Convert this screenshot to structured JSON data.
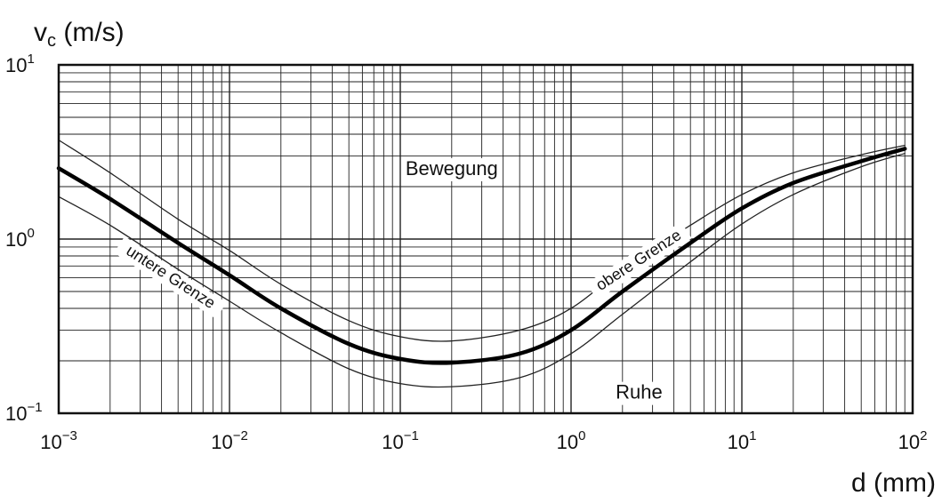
{
  "chart_data": {
    "type": "line",
    "ylabel": {
      "main": "v",
      "sub": "c",
      "unit": " (m/s)"
    },
    "xlabel": "d (mm)",
    "x_scale": "log",
    "y_scale": "log",
    "xlim": [
      0.001,
      100
    ],
    "ylim": [
      0.1,
      10
    ],
    "grid": true,
    "x_ticks": [
      {
        "base": "10",
        "exp": "−3",
        "value": 0.001
      },
      {
        "base": "10",
        "exp": "−2",
        "value": 0.01
      },
      {
        "base": "10",
        "exp": "−1",
        "value": 0.1
      },
      {
        "base": "10",
        "exp": "0",
        "value": 1
      },
      {
        "base": "10",
        "exp": "1",
        "value": 10
      },
      {
        "base": "10",
        "exp": "2",
        "value": 100
      }
    ],
    "y_ticks": [
      {
        "base": "10",
        "exp": "−1",
        "value": 0.1
      },
      {
        "base": "10",
        "exp": "0",
        "value": 1
      },
      {
        "base": "10",
        "exp": "1",
        "value": 10
      }
    ],
    "series": [
      {
        "id": "mean",
        "x": [
          0.001,
          0.002,
          0.005,
          0.01,
          0.02,
          0.05,
          0.1,
          0.2,
          0.5,
          1,
          2,
          5,
          10,
          20,
          50,
          90
        ],
        "y": [
          2.55,
          1.7,
          0.95,
          0.62,
          0.4,
          0.25,
          0.205,
          0.195,
          0.22,
          0.3,
          0.5,
          0.95,
          1.5,
          2.1,
          2.8,
          3.3
        ]
      },
      {
        "id": "upper",
        "x": [
          0.001,
          0.002,
          0.005,
          0.01,
          0.02,
          0.05,
          0.1,
          0.2,
          0.5,
          1,
          2,
          5,
          10,
          20,
          50,
          90
        ],
        "y": [
          3.7,
          2.4,
          1.3,
          0.86,
          0.55,
          0.34,
          0.275,
          0.26,
          0.3,
          0.4,
          0.67,
          1.2,
          1.8,
          2.4,
          3.05,
          3.45
        ]
      },
      {
        "id": "lower",
        "x": [
          0.001,
          0.002,
          0.005,
          0.01,
          0.02,
          0.05,
          0.1,
          0.2,
          0.5,
          1,
          2,
          5,
          10,
          20,
          50,
          90
        ],
        "y": [
          1.75,
          1.2,
          0.67,
          0.44,
          0.29,
          0.18,
          0.148,
          0.142,
          0.16,
          0.22,
          0.37,
          0.74,
          1.22,
          1.8,
          2.6,
          3.1
        ]
      }
    ],
    "annotations": [
      {
        "id": "bewegung",
        "text": "Bewegung",
        "x": 0.2,
        "y": 2.5,
        "rotate": 0
      },
      {
        "id": "ruhe",
        "text": "Ruhe",
        "x": 2.5,
        "y": 0.13,
        "rotate": 0
      },
      {
        "id": "untere",
        "text": "untere Grenze",
        "x": 0.0045,
        "y": 0.6,
        "rotate": 33
      },
      {
        "id": "obere",
        "text": "obere Grenze",
        "x": 2.5,
        "y": 0.75,
        "rotate": -33
      }
    ]
  }
}
